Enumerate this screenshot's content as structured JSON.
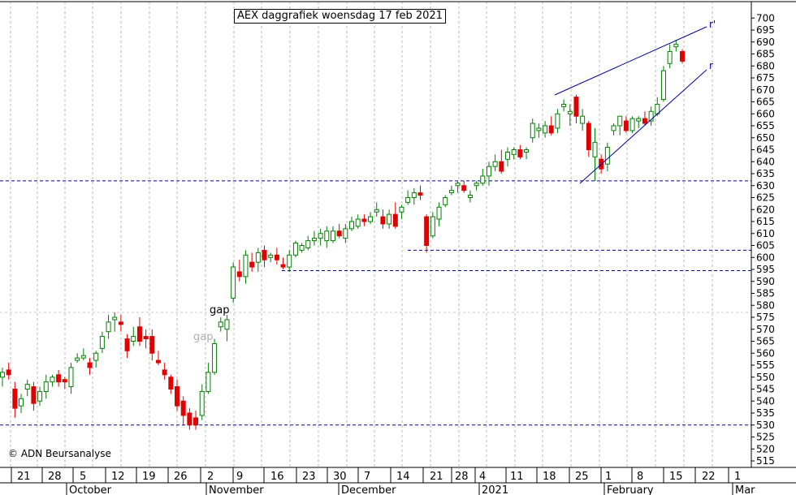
{
  "chart_data": {
    "type": "candlestick",
    "title": "AEX daggrafiek woensdag 17 feb 2021",
    "copyright": "© ADN Beursanalyse",
    "ylim": [
      512,
      702
    ],
    "y_ticks": [
      515,
      520,
      525,
      530,
      535,
      540,
      545,
      550,
      555,
      560,
      565,
      570,
      575,
      580,
      585,
      590,
      595,
      600,
      605,
      610,
      615,
      620,
      625,
      630,
      635,
      640,
      645,
      650,
      655,
      660,
      665,
      670,
      675,
      680,
      685,
      690,
      695,
      700
    ],
    "x_day_labels": [
      "21",
      "28",
      "5",
      "12",
      "19",
      "26",
      "2",
      "9",
      "16",
      "23",
      "30",
      "7",
      "14",
      "21",
      "28",
      "4",
      "11",
      "18",
      "25",
      "1",
      "8",
      "15",
      "22",
      "1"
    ],
    "x_month_labels": [
      "October",
      "November",
      "December",
      "2021",
      "February",
      "Mar"
    ],
    "annotations": [
      "gap",
      "gap",
      "r'",
      "r"
    ],
    "horizontal_levels": [
      632,
      603,
      594.5,
      530
    ],
    "colors": {
      "up": "#008000",
      "down": "#e00000",
      "level": "#0000a0",
      "trend": "#0000a0",
      "grid": "#b8b8b8"
    },
    "candles": [
      {
        "o": 550,
        "h": 554,
        "l": 546,
        "c": 552
      },
      {
        "o": 553,
        "h": 556,
        "l": 549,
        "c": 551
      },
      {
        "o": 545,
        "h": 548,
        "l": 533,
        "c": 537
      },
      {
        "o": 538,
        "h": 543,
        "l": 535,
        "c": 541
      },
      {
        "o": 545,
        "h": 549,
        "l": 542,
        "c": 547
      },
      {
        "o": 546,
        "h": 548,
        "l": 536,
        "c": 539
      },
      {
        "o": 540,
        "h": 546,
        "l": 538,
        "c": 544
      },
      {
        "o": 544,
        "h": 551,
        "l": 541,
        "c": 548
      },
      {
        "o": 548,
        "h": 551,
        "l": 546,
        "c": 550
      },
      {
        "o": 551,
        "h": 553,
        "l": 546,
        "c": 548
      },
      {
        "o": 549,
        "h": 550,
        "l": 545,
        "c": 548
      },
      {
        "o": 546,
        "h": 556,
        "l": 543,
        "c": 554
      },
      {
        "o": 557,
        "h": 560,
        "l": 556,
        "c": 558
      },
      {
        "o": 558,
        "h": 562,
        "l": 557,
        "c": 559
      },
      {
        "o": 556,
        "h": 558,
        "l": 551,
        "c": 554
      },
      {
        "o": 557,
        "h": 561,
        "l": 554,
        "c": 560
      },
      {
        "o": 562,
        "h": 569,
        "l": 560,
        "c": 567
      },
      {
        "o": 569,
        "h": 576,
        "l": 566,
        "c": 573
      },
      {
        "o": 574,
        "h": 577,
        "l": 569,
        "c": 575
      },
      {
        "o": 573,
        "h": 576,
        "l": 569,
        "c": 572
      },
      {
        "o": 566,
        "h": 568,
        "l": 558,
        "c": 561
      },
      {
        "o": 565,
        "h": 571,
        "l": 563,
        "c": 567
      },
      {
        "o": 571,
        "h": 575,
        "l": 563,
        "c": 565
      },
      {
        "o": 567,
        "h": 570,
        "l": 562,
        "c": 566
      },
      {
        "o": 567,
        "h": 570,
        "l": 557,
        "c": 560
      },
      {
        "o": 557,
        "h": 561,
        "l": 555,
        "c": 556
      },
      {
        "o": 553,
        "h": 556,
        "l": 549,
        "c": 551
      },
      {
        "o": 550,
        "h": 551,
        "l": 543,
        "c": 545
      },
      {
        "o": 546,
        "h": 549,
        "l": 536,
        "c": 538
      },
      {
        "o": 540,
        "h": 542,
        "l": 530,
        "c": 534
      },
      {
        "o": 535,
        "h": 537,
        "l": 528,
        "c": 530
      },
      {
        "o": 533,
        "h": 536,
        "l": 528,
        "c": 530
      },
      {
        "o": 534,
        "h": 547,
        "l": 532,
        "c": 544
      },
      {
        "o": 544,
        "h": 556,
        "l": 543,
        "c": 552
      },
      {
        "o": 552,
        "h": 566,
        "l": 551,
        "c": 564
      },
      {
        "o": 571,
        "h": 575,
        "l": 569,
        "c": 573
      },
      {
        "o": 570,
        "h": 576,
        "l": 565,
        "c": 574
      },
      {
        "o": 583,
        "h": 598,
        "l": 581,
        "c": 596
      },
      {
        "o": 594,
        "h": 599,
        "l": 590,
        "c": 592
      },
      {
        "o": 592,
        "h": 603,
        "l": 589,
        "c": 601
      },
      {
        "o": 598,
        "h": 602,
        "l": 594,
        "c": 596
      },
      {
        "o": 598,
        "h": 604,
        "l": 594,
        "c": 602
      },
      {
        "o": 603,
        "h": 605,
        "l": 596,
        "c": 599
      },
      {
        "o": 600,
        "h": 602,
        "l": 598,
        "c": 601
      },
      {
        "o": 601,
        "h": 604,
        "l": 597,
        "c": 599
      },
      {
        "o": 597,
        "h": 600,
        "l": 595,
        "c": 596
      },
      {
        "o": 596,
        "h": 603,
        "l": 594,
        "c": 601
      },
      {
        "o": 601,
        "h": 607,
        "l": 600,
        "c": 606
      },
      {
        "o": 603,
        "h": 606,
        "l": 602,
        "c": 605
      },
      {
        "o": 604,
        "h": 609,
        "l": 603,
        "c": 607
      },
      {
        "o": 607,
        "h": 611,
        "l": 605,
        "c": 608
      },
      {
        "o": 608,
        "h": 612,
        "l": 605,
        "c": 610
      },
      {
        "o": 607,
        "h": 613,
        "l": 604,
        "c": 611
      },
      {
        "o": 607,
        "h": 613,
        "l": 606,
        "c": 611
      },
      {
        "o": 611,
        "h": 614,
        "l": 608,
        "c": 609
      },
      {
        "o": 608,
        "h": 614,
        "l": 606,
        "c": 612
      },
      {
        "o": 612,
        "h": 617,
        "l": 611,
        "c": 615
      },
      {
        "o": 613,
        "h": 618,
        "l": 612,
        "c": 616
      },
      {
        "o": 616,
        "h": 618,
        "l": 613,
        "c": 615
      },
      {
        "o": 615,
        "h": 619,
        "l": 614,
        "c": 617
      },
      {
        "o": 619,
        "h": 623,
        "l": 617,
        "c": 620
      },
      {
        "o": 617,
        "h": 620,
        "l": 612,
        "c": 614
      },
      {
        "o": 614,
        "h": 620,
        "l": 612,
        "c": 618
      },
      {
        "o": 618,
        "h": 623,
        "l": 612,
        "c": 613
      },
      {
        "o": 619,
        "h": 622,
        "l": 616,
        "c": 621
      },
      {
        "o": 623,
        "h": 628,
        "l": 622,
        "c": 625
      },
      {
        "o": 625,
        "h": 629,
        "l": 622,
        "c": 627
      },
      {
        "o": 627,
        "h": 630,
        "l": 624,
        "c": 626
      },
      {
        "o": 617,
        "h": 618,
        "l": 602,
        "c": 605
      },
      {
        "o": 609,
        "h": 619,
        "l": 608,
        "c": 617
      },
      {
        "o": 616,
        "h": 623,
        "l": 613,
        "c": 621
      },
      {
        "o": 622,
        "h": 626,
        "l": 621,
        "c": 625
      },
      {
        "o": 627,
        "h": 630,
        "l": 626,
        "c": 628
      },
      {
        "o": 630,
        "h": 632,
        "l": 627,
        "c": 631
      },
      {
        "o": 630,
        "h": 632,
        "l": 627,
        "c": 628
      },
      {
        "o": 625,
        "h": 628,
        "l": 623,
        "c": 626
      },
      {
        "o": 630,
        "h": 632,
        "l": 628,
        "c": 631
      },
      {
        "o": 631,
        "h": 637,
        "l": 630,
        "c": 634
      },
      {
        "o": 634,
        "h": 640,
        "l": 630,
        "c": 638
      },
      {
        "o": 638,
        "h": 643,
        "l": 636,
        "c": 640
      },
      {
        "o": 640,
        "h": 645,
        "l": 635,
        "c": 636
      },
      {
        "o": 641,
        "h": 646,
        "l": 638,
        "c": 644
      },
      {
        "o": 643,
        "h": 646,
        "l": 641,
        "c": 645
      },
      {
        "o": 645,
        "h": 647,
        "l": 641,
        "c": 642
      },
      {
        "o": 644,
        "h": 646,
        "l": 641,
        "c": 645
      },
      {
        "o": 650,
        "h": 658,
        "l": 648,
        "c": 656
      },
      {
        "o": 653,
        "h": 656,
        "l": 650,
        "c": 654
      },
      {
        "o": 652,
        "h": 657,
        "l": 650,
        "c": 655
      },
      {
        "o": 655,
        "h": 659,
        "l": 651,
        "c": 652
      },
      {
        "o": 654,
        "h": 662,
        "l": 652,
        "c": 660
      },
      {
        "o": 663,
        "h": 666,
        "l": 661,
        "c": 664
      },
      {
        "o": 660,
        "h": 664,
        "l": 655,
        "c": 661
      },
      {
        "o": 667,
        "h": 668,
        "l": 656,
        "c": 659
      },
      {
        "o": 656,
        "h": 662,
        "l": 653,
        "c": 659
      },
      {
        "o": 656,
        "h": 657,
        "l": 642,
        "c": 645
      },
      {
        "o": 642,
        "h": 654,
        "l": 632,
        "c": 648
      },
      {
        "o": 641,
        "h": 643,
        "l": 635,
        "c": 637
      },
      {
        "o": 639,
        "h": 648,
        "l": 636,
        "c": 646
      },
      {
        "o": 653,
        "h": 656,
        "l": 651,
        "c": 655
      },
      {
        "o": 655,
        "h": 658,
        "l": 651,
        "c": 659
      },
      {
        "o": 657,
        "h": 659,
        "l": 652,
        "c": 653
      },
      {
        "o": 653,
        "h": 659,
        "l": 652,
        "c": 658
      },
      {
        "o": 657,
        "h": 659,
        "l": 654,
        "c": 658
      },
      {
        "o": 658,
        "h": 661,
        "l": 655,
        "c": 656
      },
      {
        "o": 657,
        "h": 663,
        "l": 655,
        "c": 661
      },
      {
        "o": 660,
        "h": 667,
        "l": 659,
        "c": 664
      },
      {
        "o": 666,
        "h": 680,
        "l": 665,
        "c": 678
      },
      {
        "o": 681,
        "h": 689,
        "l": 679,
        "c": 686
      },
      {
        "o": 688,
        "h": 691,
        "l": 686,
        "c": 689
      },
      {
        "o": 686,
        "h": 687,
        "l": 681,
        "c": 682
      }
    ]
  }
}
